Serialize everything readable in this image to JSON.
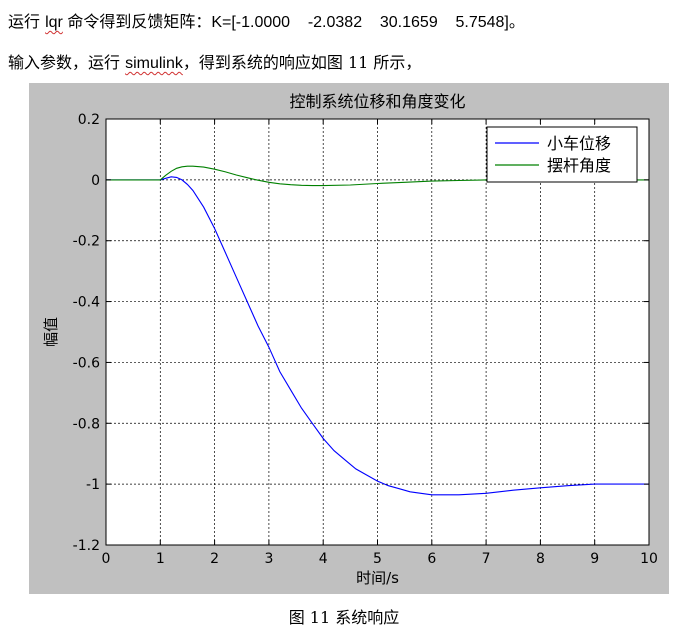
{
  "text": {
    "p1_a": "运行 ",
    "p1_word": "lqr",
    "p1_b": " 命令得到反馈矩阵：K=[-1.0000    -2.0382    30.1659    5.7548]。",
    "p2_a": "输入参数，运行 ",
    "p2_word": "simulink",
    "p2_b": "，得到系统的响应如图 11 所示，",
    "caption": "图 11  系统响应"
  },
  "colors": {
    "figure_bg": "#c0c0c0",
    "plot_bg": "#ffffff",
    "series_cart": "#0000ff",
    "series_pendulum": "#008000"
  },
  "chart_data": {
    "type": "line",
    "title": "控制系统位移和角度变化",
    "xlabel": "时间/s",
    "ylabel": "幅值",
    "xlim": [
      0,
      10
    ],
    "ylim": [
      -1.2,
      0.2
    ],
    "xticks": [
      0,
      1,
      2,
      3,
      4,
      5,
      6,
      7,
      8,
      9,
      10
    ],
    "yticks": [
      0.2,
      0,
      -0.2,
      -0.4,
      -0.6,
      -0.8,
      -1,
      -1.2
    ],
    "ytick_labels": [
      "0.2",
      "0",
      "-0.2",
      "-0.4",
      "-0.6",
      "-0.8",
      "-1",
      "-1.2"
    ],
    "grid": true,
    "legend": "top-right",
    "series": [
      {
        "name": "小车位移",
        "color": "#0000ff",
        "x": [
          0,
          1.0,
          1.1,
          1.2,
          1.3,
          1.4,
          1.5,
          1.6,
          1.8,
          2.0,
          2.2,
          2.4,
          2.6,
          2.8,
          3.0,
          3.2,
          3.4,
          3.6,
          3.8,
          4.0,
          4.2,
          4.4,
          4.6,
          4.8,
          5.0,
          5.2,
          5.4,
          5.6,
          5.8,
          6.0,
          6.2,
          6.5,
          7.0,
          7.5,
          8.0,
          8.5,
          9.0,
          9.5,
          10.0
        ],
        "y": [
          0,
          0,
          0.005,
          0.01,
          0.008,
          0.0,
          -0.015,
          -0.035,
          -0.09,
          -0.16,
          -0.24,
          -0.32,
          -0.4,
          -0.48,
          -0.55,
          -0.63,
          -0.69,
          -0.75,
          -0.8,
          -0.85,
          -0.89,
          -0.92,
          -0.95,
          -0.97,
          -0.99,
          -1.005,
          -1.015,
          -1.025,
          -1.03,
          -1.035,
          -1.035,
          -1.035,
          -1.03,
          -1.02,
          -1.012,
          -1.005,
          -1.0,
          -1.0,
          -1.0
        ]
      },
      {
        "name": "摆杆角度",
        "color": "#008000",
        "x": [
          0,
          1.0,
          1.1,
          1.2,
          1.3,
          1.4,
          1.5,
          1.6,
          1.8,
          2.0,
          2.2,
          2.4,
          2.6,
          2.8,
          3.0,
          3.2,
          3.4,
          3.6,
          3.8,
          4.0,
          4.5,
          5.0,
          5.5,
          6.0,
          6.5,
          7.0,
          7.5,
          8.0,
          9.0,
          10.0
        ],
        "y": [
          0,
          0,
          0.015,
          0.028,
          0.038,
          0.043,
          0.045,
          0.045,
          0.042,
          0.035,
          0.026,
          0.016,
          0.007,
          -0.001,
          -0.008,
          -0.013,
          -0.016,
          -0.018,
          -0.019,
          -0.019,
          -0.017,
          -0.012,
          -0.008,
          -0.004,
          -0.002,
          0.0,
          0.0,
          0.0,
          0.0,
          0.0
        ]
      }
    ]
  }
}
